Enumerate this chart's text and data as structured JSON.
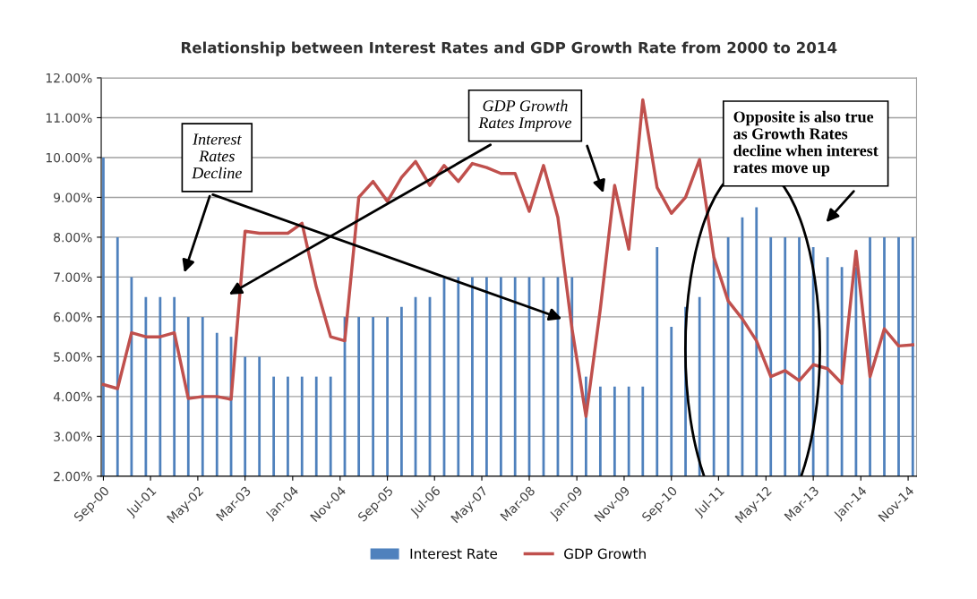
{
  "chart_data": {
    "type": "bar",
    "title": "Relationship between Interest Rates and GDP Growth Rate from 2000 to 2014",
    "x": [
      "2000-09",
      "2000-12",
      "2001-03",
      "2001-06",
      "2001-09",
      "2001-12",
      "2002-03",
      "2002-06",
      "2002-09",
      "2002-12",
      "2003-03",
      "2003-06",
      "2003-09",
      "2003-12",
      "2004-03",
      "2004-06",
      "2004-09",
      "2004-12",
      "2005-03",
      "2005-06",
      "2005-09",
      "2005-12",
      "2006-03",
      "2006-06",
      "2006-09",
      "2006-12",
      "2007-03",
      "2007-06",
      "2007-09",
      "2007-12",
      "2008-03",
      "2008-06",
      "2008-09",
      "2008-12",
      "2009-03",
      "2009-06",
      "2009-09",
      "2009-12",
      "2010-03",
      "2010-06",
      "2010-09",
      "2010-12",
      "2011-03",
      "2011-06",
      "2011-09",
      "2011-12",
      "2012-03",
      "2012-06",
      "2012-09",
      "2012-12",
      "2013-03",
      "2013-06",
      "2013-09",
      "2013-12",
      "2014-03",
      "2014-06",
      "2014-09",
      "2014-12"
    ],
    "series": [
      {
        "name": "Interest Rate",
        "color": "#4f81bd",
        "values": [
          10.0,
          8.0,
          7.0,
          6.5,
          6.5,
          6.5,
          6.0,
          6.0,
          5.6,
          5.5,
          5.0,
          5.0,
          4.5,
          4.5,
          4.5,
          4.5,
          4.5,
          6.0,
          6.0,
          6.0,
          6.0,
          6.25,
          6.5,
          6.5,
          7.0,
          7.0,
          7.0,
          7.0,
          7.0,
          7.0,
          7.0,
          7.0,
          7.0,
          7.0,
          4.5,
          4.25,
          4.25,
          4.25,
          4.25,
          7.75,
          5.75,
          6.25,
          6.5,
          7.5,
          8.0,
          8.5,
          8.75,
          8.0,
          8.0,
          8.0,
          7.75,
          7.5,
          7.25,
          7.25,
          8.0,
          8.0,
          8.0,
          8.0
        ]
      },
      {
        "name": "GDP Growth",
        "type": "line",
        "color": "#c0504d",
        "values": [
          4.3,
          4.2,
          5.6,
          5.5,
          5.5,
          5.6,
          3.95,
          4.0,
          4.0,
          3.93,
          8.15,
          8.1,
          8.1,
          8.1,
          8.35,
          6.75,
          5.5,
          5.4,
          9.0,
          9.4,
          8.9,
          9.5,
          9.9,
          9.3,
          9.8,
          9.4,
          9.85,
          9.75,
          9.6,
          9.6,
          8.65,
          9.8,
          8.5,
          5.7,
          3.5,
          6.2,
          9.3,
          7.7,
          11.45,
          9.25,
          8.6,
          9.0,
          9.95,
          7.5,
          6.4,
          5.95,
          5.4,
          4.5,
          4.65,
          4.4,
          4.8,
          4.7,
          4.33,
          7.65,
          4.5,
          5.7,
          5.27,
          5.3
        ]
      }
    ],
    "xlim": [
      "2000-08-18",
      "2014-12-25"
    ],
    "xticks": [
      {
        "value": "2000-09",
        "label": "Sep-00"
      },
      {
        "value": "2001-07",
        "label": "Jul-01"
      },
      {
        "value": "2002-05",
        "label": "May-02"
      },
      {
        "value": "2003-03",
        "label": "Mar-03"
      },
      {
        "value": "2004-01",
        "label": "Jan-04"
      },
      {
        "value": "2004-11",
        "label": "Nov-04"
      },
      {
        "value": "2005-09",
        "label": "Sep-05"
      },
      {
        "value": "2006-07",
        "label": "Jul-06"
      },
      {
        "value": "2007-05",
        "label": "May-07"
      },
      {
        "value": "2008-03",
        "label": "Mar-08"
      },
      {
        "value": "2009-01",
        "label": "Jan-09"
      },
      {
        "value": "2009-11",
        "label": "Nov-09"
      },
      {
        "value": "2010-09",
        "label": "Sep-10"
      },
      {
        "value": "2011-07",
        "label": "Jul-11"
      },
      {
        "value": "2012-05",
        "label": "May-12"
      },
      {
        "value": "2013-03",
        "label": "Mar-13"
      },
      {
        "value": "2014-01",
        "label": "Jan-14"
      },
      {
        "value": "2014-11",
        "label": "Nov-14"
      }
    ],
    "ylim": [
      2,
      12
    ],
    "yticks": [
      {
        "value": 2,
        "label": "2.00%"
      },
      {
        "value": 3,
        "label": "3.00%"
      },
      {
        "value": 4,
        "label": "4.00%"
      },
      {
        "value": 5,
        "label": "5.00%"
      },
      {
        "value": 6,
        "label": "6.00%"
      },
      {
        "value": 7,
        "label": "7.00%"
      },
      {
        "value": 8,
        "label": "8.00%"
      },
      {
        "value": 9,
        "label": "9.00%"
      },
      {
        "value": 10,
        "label": "10.00%"
      },
      {
        "value": 11,
        "label": "11.00%"
      },
      {
        "value": 12,
        "label": "12.00%"
      }
    ],
    "grid": "y",
    "legend": "bottom",
    "annotations": [
      "Interest\nRates\nDecline",
      "GDP Growth\nRates Improve",
      "Opposite is also true\nas Growth Rates\ndecline when interest\nrates move up"
    ]
  }
}
